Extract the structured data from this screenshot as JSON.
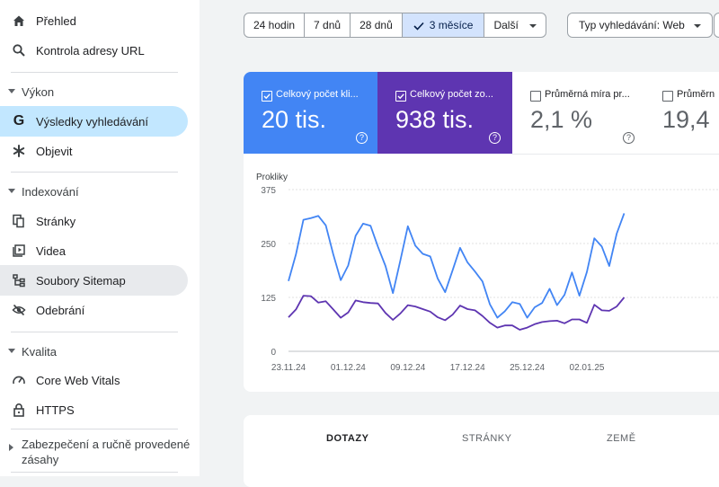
{
  "nav": {
    "overview": "Přehled",
    "url_inspection": "Kontrola adresy URL",
    "performance_section": "Výkon",
    "search_results": "Výsledky vyhledávání",
    "discover": "Objevit",
    "indexing_section": "Indexování",
    "pages": "Stránky",
    "videos": "Videa",
    "sitemaps": "Soubory Sitemap",
    "removals": "Odebrání",
    "quality_section": "Kvalita",
    "core_web_vitals": "Core Web Vitals",
    "https": "HTTPS",
    "security_line1": "Zabezpečení a ručně provedené",
    "security_line2": "zásahy"
  },
  "filters": {
    "ranges": [
      "24 hodin",
      "7 dnů",
      "28 dnů",
      "3 měsíce"
    ],
    "selected_range": "3 měsíce",
    "more": "Další",
    "search_type": "Typ vyhledávání: Web"
  },
  "metrics": {
    "clicks": {
      "label": "Celkový počet kli...",
      "value": "20 tis.",
      "checked": true,
      "color": "#4285f4"
    },
    "impressions": {
      "label": "Celkový počet zo...",
      "value": "938 tis.",
      "checked": true,
      "color": "#5e35b1"
    },
    "ctr": {
      "label": "Průměrná míra pr...",
      "value": "2,1 %",
      "checked": false
    },
    "position": {
      "label": "Průměrn",
      "value": "19,4",
      "checked": false
    }
  },
  "tabs": [
    "DOTAZY",
    "STRÁNKY",
    "ZEMĚ"
  ],
  "chart_data": {
    "type": "line",
    "ylabel": "Prokliky",
    "yticks": [
      0,
      125,
      250,
      375
    ],
    "ylim": [
      0,
      375
    ],
    "xticks": [
      "23.11.24",
      "01.12.24",
      "09.12.24",
      "17.12.24",
      "25.12.24",
      "02.01.25"
    ],
    "x": [
      "23.11.24",
      "24.11.24",
      "25.11.24",
      "26.11.24",
      "27.11.24",
      "28.11.24",
      "29.11.24",
      "30.11.24",
      "01.12.24",
      "02.12.24",
      "03.12.24",
      "04.12.24",
      "05.12.24",
      "06.12.24",
      "07.12.24",
      "08.12.24",
      "09.12.24",
      "10.12.24",
      "11.12.24",
      "12.12.24",
      "13.12.24",
      "14.12.24",
      "15.12.24",
      "16.12.24",
      "17.12.24",
      "18.12.24",
      "19.12.24",
      "20.12.24",
      "21.12.24",
      "22.12.24",
      "23.12.24",
      "24.12.24",
      "25.12.24",
      "26.12.24",
      "27.12.24",
      "28.12.24",
      "29.12.24",
      "30.12.24",
      "31.12.24",
      "01.01.25",
      "02.01.25",
      "03.01.25",
      "04.01.25",
      "05.01.25",
      "06.01.25",
      "07.01.25"
    ],
    "series": [
      {
        "color": "#4285f4",
        "values": [
          163,
          225,
          305,
          309,
          314,
          292,
          225,
          165,
          199,
          268,
          296,
          291,
          242,
          198,
          135,
          211,
          290,
          245,
          226,
          220,
          169,
          137,
          188,
          240,
          206,
          185,
          162,
          109,
          78,
          93,
          114,
          110,
          78,
          102,
          112,
          145,
          107,
          131,
          183,
          129,
          184,
          262,
          243,
          198,
          273,
          320
        ]
      },
      {
        "color": "#5e35b1",
        "values": [
          79,
          97,
          129,
          128,
          113,
          116,
          97,
          78,
          90,
          118,
          114,
          112,
          111,
          89,
          73,
          88,
          107,
          104,
          98,
          92,
          79,
          72,
          85,
          106,
          98,
          95,
          82,
          66,
          55,
          60,
          60,
          50,
          55,
          63,
          68,
          70,
          71,
          65,
          74,
          74,
          66,
          108,
          95,
          94,
          104,
          125
        ]
      }
    ]
  }
}
